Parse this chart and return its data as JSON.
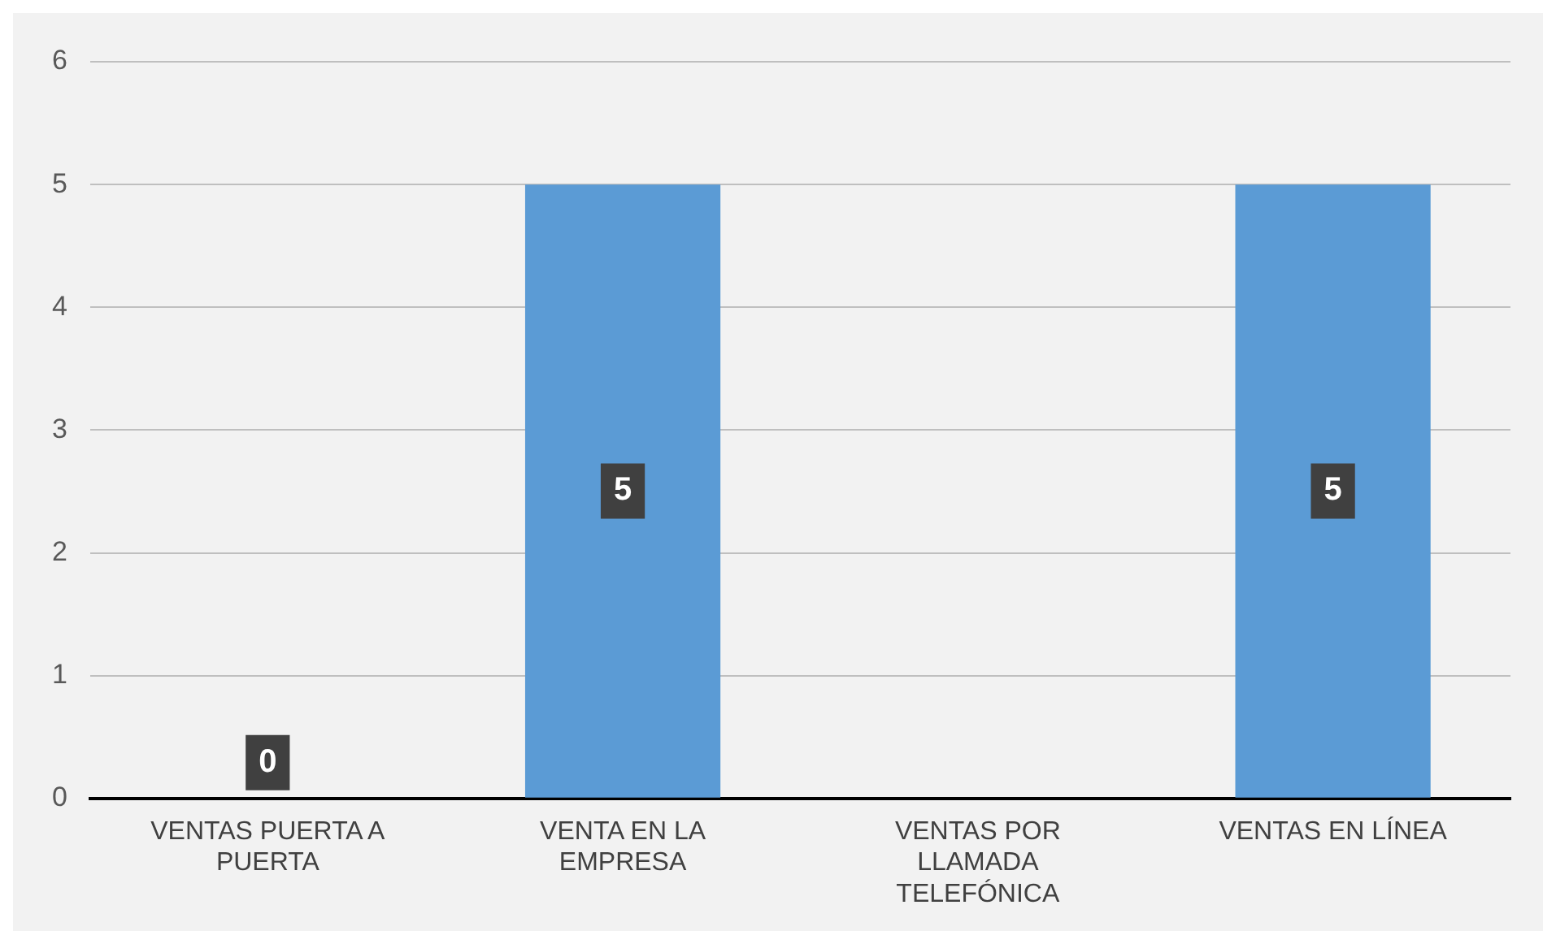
{
  "chart_data": {
    "type": "bar",
    "categories": [
      "VENTAS PUERTA A PUERTA",
      "VENTA EN LA EMPRESA",
      "VENTAS POR LLAMADA TELEFÓNICA",
      "VENTAS EN LÍNEA"
    ],
    "values": [
      0,
      5,
      null,
      5
    ],
    "color": "#5b9bd5",
    "value_labels": [
      "0",
      "5",
      null,
      "5"
    ],
    "ylim": [
      0,
      6
    ],
    "yticks": [
      0,
      1,
      2,
      3,
      4,
      5,
      6
    ],
    "grid": "y"
  }
}
